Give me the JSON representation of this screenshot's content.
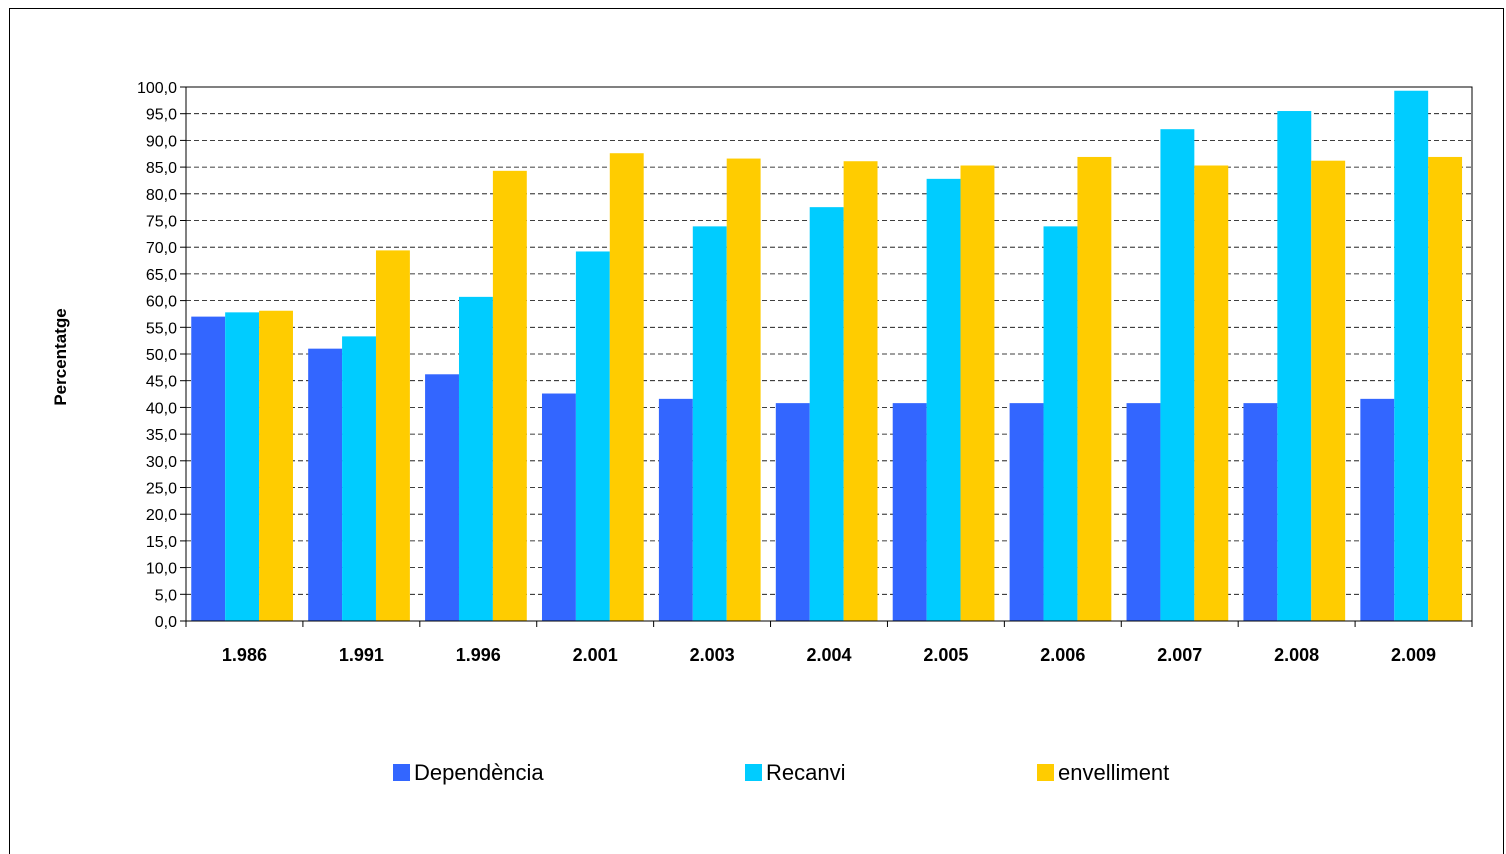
{
  "chart_data": {
    "type": "bar",
    "title": "",
    "xlabel": "",
    "ylabel": "Percentatge",
    "ylim": [
      0,
      100
    ],
    "ytick_step": 5,
    "ytick_labels": [
      "0,0",
      "5,0",
      "10,0",
      "15,0",
      "20,0",
      "25,0",
      "30,0",
      "35,0",
      "40,0",
      "45,0",
      "50,0",
      "55,0",
      "60,0",
      "65,0",
      "70,0",
      "75,0",
      "80,0",
      "85,0",
      "90,0",
      "95,0",
      "100,0"
    ],
    "categories": [
      "1.986",
      "1.991",
      "1.996",
      "2.001",
      "2.003",
      "2.004",
      "2.005",
      "2.006",
      "2.007",
      "2.008",
      "2.009"
    ],
    "series": [
      {
        "name": "Dependència",
        "color": "#3366FF",
        "values": [
          57.0,
          51.0,
          46.2,
          42.6,
          41.6,
          40.8,
          40.8,
          40.8,
          40.8,
          40.8,
          41.6
        ]
      },
      {
        "name": "Recanvi",
        "color": "#00CCFF",
        "values": [
          57.8,
          53.3,
          60.7,
          69.2,
          73.9,
          77.5,
          82.8,
          73.9,
          92.1,
          95.5,
          99.3
        ]
      },
      {
        "name": "envelliment",
        "color": "#FFCC00",
        "values": [
          58.1,
          69.4,
          84.3,
          87.6,
          86.6,
          86.1,
          85.3,
          86.9,
          85.3,
          86.2,
          86.9
        ]
      }
    ],
    "grid": true,
    "legend_position": "bottom"
  }
}
